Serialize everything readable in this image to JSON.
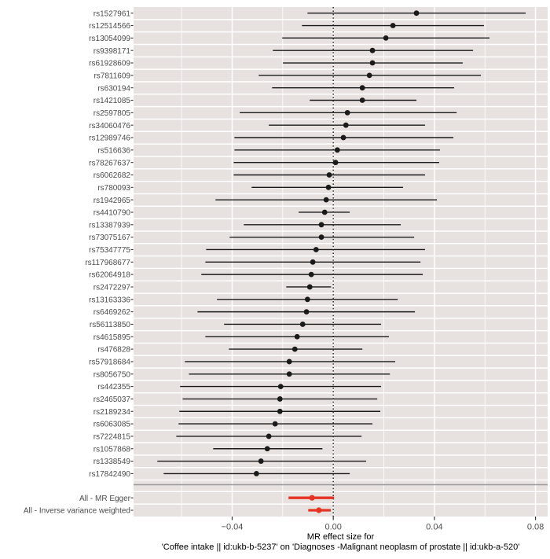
{
  "figure": {
    "colors": {
      "panel_background": "#e7e1df",
      "gridline": "#ffffff",
      "marker_black": "#1a1a1a",
      "summary_red": "#e63323",
      "separator_gray": "#9a9a9a",
      "axis_text_gray": "#4d4d4d",
      "zero_line_black": "#111111"
    }
  },
  "chart_data": {
    "type": "scatter",
    "subtype": "forest-plot-mendelian-randomization",
    "title": "",
    "xlabel_line1": "MR effect size for",
    "xlabel_line2": "'Coffee intake || id:ukb-b-5237' on 'Diagnoses -Malignant neoplasm of prostate || id:ukb-a-520'",
    "xlim": [
      -0.079,
      0.0848
    ],
    "x_major_ticks": [
      -0.04,
      0.0,
      0.04,
      0.08
    ],
    "x_tick_labels": [
      "−0.04",
      "0.00",
      "0.04",
      "0.08"
    ],
    "x_minor_ticks": [
      -0.06,
      -0.02,
      0.02,
      0.06
    ],
    "zero_reference_line": 0.0,
    "grid": true,
    "legend_position": "none",
    "snps": [
      {
        "label": "rs1527961",
        "estimate": 0.0329,
        "ci_low": -0.0102,
        "ci_high": 0.0761
      },
      {
        "label": "rs12514566",
        "estimate": 0.0236,
        "ci_low": -0.0124,
        "ci_high": 0.0596
      },
      {
        "label": "rs13054099",
        "estimate": 0.0208,
        "ci_low": -0.0202,
        "ci_high": 0.0618
      },
      {
        "label": "rs9398171",
        "estimate": 0.0155,
        "ci_low": -0.0239,
        "ci_high": 0.0553
      },
      {
        "label": "rs61928609",
        "estimate": 0.0155,
        "ci_low": -0.0199,
        "ci_high": 0.0512
      },
      {
        "label": "rs7811609",
        "estimate": 0.0143,
        "ci_low": -0.0295,
        "ci_high": 0.0584
      },
      {
        "label": "rs630194",
        "estimate": 0.0115,
        "ci_low": -0.0242,
        "ci_high": 0.0478
      },
      {
        "label": "rs1421085",
        "estimate": 0.0115,
        "ci_low": -0.0093,
        "ci_high": 0.0329
      },
      {
        "label": "rs2597805",
        "estimate": 0.0056,
        "ci_low": -0.037,
        "ci_high": 0.0488
      },
      {
        "label": "rs34060476",
        "estimate": 0.005,
        "ci_low": -0.0255,
        "ci_high": 0.0363
      },
      {
        "label": "rs12989746",
        "estimate": 0.004,
        "ci_low": -0.0391,
        "ci_high": 0.0475
      },
      {
        "label": "rs516636",
        "estimate": 0.0016,
        "ci_low": -0.0391,
        "ci_high": 0.0422
      },
      {
        "label": "rs78267637",
        "estimate": 0.0009,
        "ci_low": -0.0394,
        "ci_high": 0.0419
      },
      {
        "label": "rs6062682",
        "estimate": -0.0016,
        "ci_low": -0.0394,
        "ci_high": 0.0363
      },
      {
        "label": "rs780093",
        "estimate": -0.0019,
        "ci_low": -0.0323,
        "ci_high": 0.0276
      },
      {
        "label": "rs1942965",
        "estimate": -0.0028,
        "ci_low": -0.0466,
        "ci_high": 0.041
      },
      {
        "label": "rs4410790",
        "estimate": -0.0034,
        "ci_low": -0.0137,
        "ci_high": 0.0065
      },
      {
        "label": "rs13387939",
        "estimate": -0.0047,
        "ci_low": -0.0354,
        "ci_high": 0.0267
      },
      {
        "label": "rs73075167",
        "estimate": -0.0047,
        "ci_low": -0.041,
        "ci_high": 0.032
      },
      {
        "label": "rs75347775",
        "estimate": -0.0068,
        "ci_low": -0.0503,
        "ci_high": 0.0363
      },
      {
        "label": "rs117968677",
        "estimate": -0.0081,
        "ci_low": -0.0506,
        "ci_high": 0.0345
      },
      {
        "label": "rs62064918",
        "estimate": -0.0087,
        "ci_low": -0.0522,
        "ci_high": 0.0354
      },
      {
        "label": "rs2472297",
        "estimate": -0.0093,
        "ci_low": -0.0186,
        "ci_high": -0.0009
      },
      {
        "label": "rs13163336",
        "estimate": -0.0102,
        "ci_low": -0.046,
        "ci_high": 0.0255
      },
      {
        "label": "rs6469262",
        "estimate": -0.0106,
        "ci_low": -0.0537,
        "ci_high": 0.0323
      },
      {
        "label": "rs56113850",
        "estimate": -0.0121,
        "ci_low": -0.0432,
        "ci_high": 0.0189
      },
      {
        "label": "rs4615895",
        "estimate": -0.0143,
        "ci_low": -0.0506,
        "ci_high": 0.022
      },
      {
        "label": "rs476828",
        "estimate": -0.0152,
        "ci_low": -0.0413,
        "ci_high": 0.0115
      },
      {
        "label": "rs57918684",
        "estimate": -0.0174,
        "ci_low": -0.0587,
        "ci_high": 0.0245
      },
      {
        "label": "rs8056750",
        "estimate": -0.0174,
        "ci_low": -0.0571,
        "ci_high": 0.0224
      },
      {
        "label": "rs442355",
        "estimate": -0.0208,
        "ci_low": -0.0606,
        "ci_high": 0.0189
      },
      {
        "label": "rs2465037",
        "estimate": -0.0211,
        "ci_low": -0.0596,
        "ci_high": 0.0174
      },
      {
        "label": "rs2189234",
        "estimate": -0.0211,
        "ci_low": -0.0609,
        "ci_high": 0.0186
      },
      {
        "label": "rs6063085",
        "estimate": -0.023,
        "ci_low": -0.0612,
        "ci_high": 0.0155
      },
      {
        "label": "rs7224815",
        "estimate": -0.0255,
        "ci_low": -0.0621,
        "ci_high": 0.0112
      },
      {
        "label": "rs1057868",
        "estimate": -0.0261,
        "ci_low": -0.0475,
        "ci_high": -0.0043
      },
      {
        "label": "rs1338549",
        "estimate": -0.0286,
        "ci_low": -0.0696,
        "ci_high": 0.013
      },
      {
        "label": "rs17842490",
        "estimate": -0.0304,
        "ci_low": -0.0671,
        "ci_high": 0.0065
      }
    ],
    "summary": [
      {
        "label": "All - MR Egger",
        "estimate": -0.0084,
        "ci_low": -0.0177,
        "ci_high": 0.0003
      },
      {
        "label": "All - Inverse variance weighted",
        "estimate": -0.0057,
        "ci_low": -0.0099,
        "ci_high": -0.001
      }
    ]
  }
}
